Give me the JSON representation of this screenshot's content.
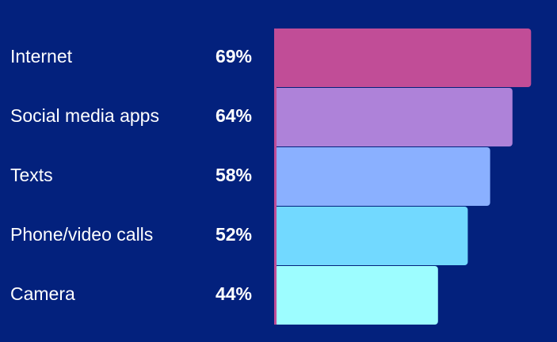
{
  "chart_data": {
    "type": "bar",
    "orientation": "horizontal",
    "categories": [
      "Internet",
      "Social media apps",
      "Texts",
      "Phone/video calls",
      "Camera"
    ],
    "values": [
      69,
      64,
      58,
      52,
      44
    ],
    "value_labels": [
      "69%",
      "64%",
      "58%",
      "52%",
      "44%"
    ],
    "colors": [
      "#c14d97",
      "#ae82d9",
      "#8ab0ff",
      "#72d9ff",
      "#9dfdff"
    ]
  }
}
